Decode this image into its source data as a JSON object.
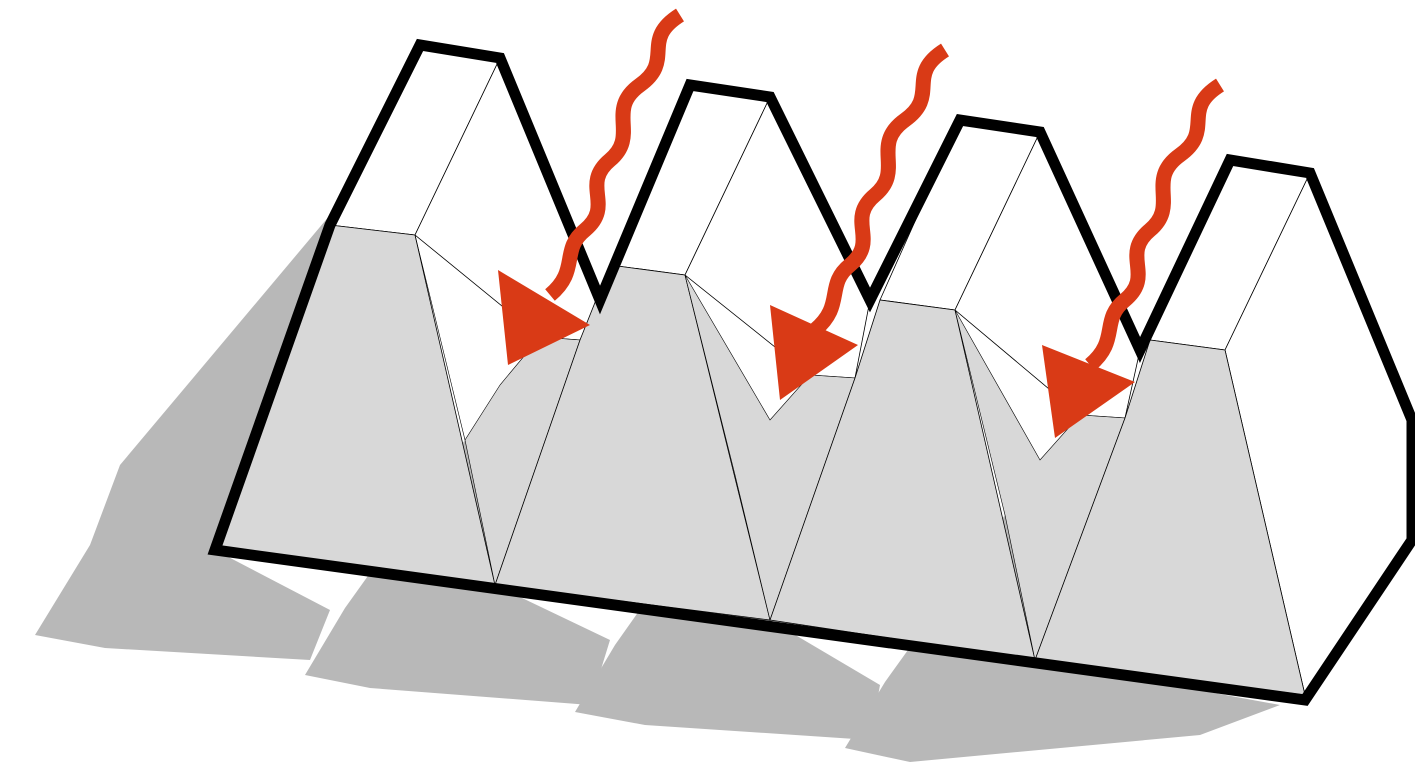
{
  "diagram": {
    "description_visible_text": "",
    "colors": {
      "background": "#ffffff",
      "outline": "#000000",
      "shadow": "#b8b8b8",
      "lit_face": "#ffffff",
      "shaded_face": "#d8d8d8",
      "arrow": "#d93a16"
    },
    "elements": {
      "ridges": [
        "ridge-1",
        "ridge-2",
        "ridge-3",
        "ridge-4"
      ],
      "arrows": [
        "incoming-radiation-arrow-1",
        "incoming-radiation-arrow-2",
        "incoming-radiation-arrow-3"
      ]
    }
  }
}
